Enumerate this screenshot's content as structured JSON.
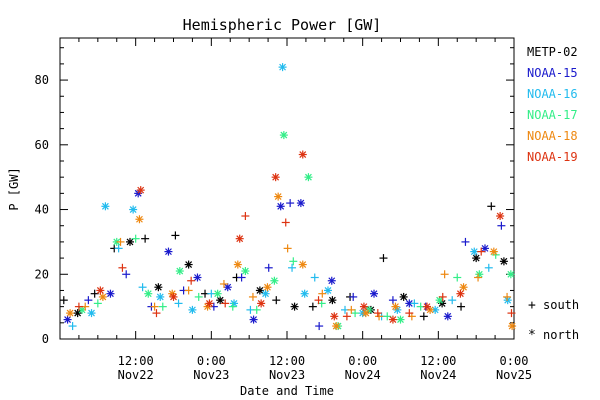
{
  "chart_data": {
    "type": "scatter",
    "title": "Hemispheric Power [GW]",
    "ylabel": "P [GW]",
    "xlabel": "Date and Time",
    "ylim": [
      0,
      93
    ],
    "xlim_hours": [
      0,
      72
    ],
    "y_ticks": [
      "0",
      "20",
      "40",
      "60",
      "80"
    ],
    "x_ticks": [
      {
        "time": "12:00",
        "date": "Nov22"
      },
      {
        "time": "0:00",
        "date": "Nov23"
      },
      {
        "time": "12:00",
        "date": "Nov23"
      },
      {
        "time": "0:00",
        "date": "Nov24"
      },
      {
        "time": "12:00",
        "date": "Nov24"
      },
      {
        "time": "0:00",
        "date": "Nov25"
      }
    ],
    "legend_position": "right",
    "series": [
      {
        "name": "METP-02",
        "color": "#000000"
      },
      {
        "name": "NOAA-15",
        "color": "#1a1acc"
      },
      {
        "name": "NOAA-16",
        "color": "#22bbee"
      },
      {
        "name": "NOAA-17",
        "color": "#33ee88"
      },
      {
        "name": "NOAA-18",
        "color": "#ee8811"
      },
      {
        "name": "NOAA-19",
        "color": "#dd3311"
      }
    ],
    "marker_legend": [
      {
        "symbol": "+",
        "label": "south"
      },
      {
        "symbol": "*",
        "label": "north"
      }
    ],
    "points": [
      [
        0,
        0.6,
        12,
        "+"
      ],
      [
        0,
        2.8,
        8,
        "*"
      ],
      [
        0,
        5.5,
        14,
        "+"
      ],
      [
        0,
        8.6,
        28,
        "+"
      ],
      [
        0,
        11.1,
        30,
        "*"
      ],
      [
        0,
        13.5,
        31,
        "+"
      ],
      [
        0,
        15.6,
        16,
        "*"
      ],
      [
        0,
        18.3,
        32,
        "+"
      ],
      [
        0,
        20.4,
        23,
        "*"
      ],
      [
        0,
        23.0,
        14,
        "+"
      ],
      [
        0,
        25.4,
        12,
        "*"
      ],
      [
        0,
        28.0,
        19,
        "+"
      ],
      [
        0,
        31.7,
        15,
        "*"
      ],
      [
        0,
        34.3,
        12,
        "+"
      ],
      [
        0,
        37.2,
        10,
        "*"
      ],
      [
        0,
        40.1,
        10,
        "+"
      ],
      [
        0,
        43.2,
        12,
        "*"
      ],
      [
        0,
        46.0,
        13,
        "+"
      ],
      [
        0,
        49.3,
        9,
        "*"
      ],
      [
        0,
        51.3,
        25,
        "+"
      ],
      [
        0,
        54.5,
        13,
        "*"
      ],
      [
        0,
        57.7,
        7,
        "+"
      ],
      [
        0,
        60.6,
        11,
        "*"
      ],
      [
        0,
        63.6,
        10,
        "+"
      ],
      [
        0,
        66.0,
        25,
        "*"
      ],
      [
        0,
        68.4,
        41,
        "+"
      ],
      [
        0,
        70.4,
        24,
        "*"
      ],
      [
        1,
        1.2,
        6,
        "*"
      ],
      [
        1,
        4.5,
        12,
        "+"
      ],
      [
        1,
        8.0,
        14,
        "*"
      ],
      [
        1,
        10.5,
        20,
        "+"
      ],
      [
        1,
        12.4,
        45,
        "*"
      ],
      [
        1,
        14.5,
        10,
        "+"
      ],
      [
        1,
        17.2,
        27,
        "*"
      ],
      [
        1,
        19.6,
        15,
        "+"
      ],
      [
        1,
        21.8,
        19,
        "*"
      ],
      [
        1,
        24.4,
        10,
        "+"
      ],
      [
        1,
        26.6,
        16,
        "*"
      ],
      [
        1,
        28.8,
        19,
        "+"
      ],
      [
        1,
        30.7,
        6,
        "*"
      ],
      [
        1,
        33.1,
        22,
        "+"
      ],
      [
        1,
        35.0,
        41,
        "*"
      ],
      [
        1,
        36.5,
        42,
        "+"
      ],
      [
        1,
        38.2,
        42,
        "*"
      ],
      [
        1,
        41.1,
        4,
        "+"
      ],
      [
        1,
        43.1,
        18,
        "*"
      ],
      [
        1,
        46.5,
        13,
        "+"
      ],
      [
        1,
        49.8,
        14,
        "*"
      ],
      [
        1,
        52.8,
        12,
        "+"
      ],
      [
        1,
        55.4,
        11,
        "*"
      ],
      [
        1,
        58.0,
        10,
        "+"
      ],
      [
        1,
        61.5,
        7,
        "*"
      ],
      [
        1,
        64.3,
        30,
        "+"
      ],
      [
        1,
        67.4,
        28,
        "*"
      ],
      [
        1,
        70.0,
        35,
        "+"
      ],
      [
        2,
        2.0,
        4,
        "+"
      ],
      [
        2,
        5.0,
        8,
        "*"
      ],
      [
        2,
        7.2,
        41,
        "*"
      ],
      [
        2,
        9.3,
        28,
        "+"
      ],
      [
        2,
        11.6,
        40,
        "*"
      ],
      [
        2,
        13.1,
        16,
        "+"
      ],
      [
        2,
        15.9,
        13,
        "*"
      ],
      [
        2,
        18.8,
        11,
        "+"
      ],
      [
        2,
        21.0,
        9,
        "*"
      ],
      [
        2,
        24.0,
        14,
        "+"
      ],
      [
        2,
        27.6,
        11,
        "*"
      ],
      [
        2,
        30.2,
        9,
        "+"
      ],
      [
        2,
        32.6,
        14,
        "*"
      ],
      [
        2,
        35.3,
        84,
        "*"
      ],
      [
        2,
        36.8,
        22,
        "+"
      ],
      [
        2,
        38.8,
        14,
        "*"
      ],
      [
        2,
        40.4,
        19,
        "+"
      ],
      [
        2,
        42.5,
        15,
        "*"
      ],
      [
        2,
        45.2,
        9,
        "+"
      ],
      [
        2,
        48.0,
        8,
        "*"
      ],
      [
        2,
        51.0,
        7,
        "+"
      ],
      [
        2,
        53.5,
        9,
        "*"
      ],
      [
        2,
        56.2,
        11,
        "+"
      ],
      [
        2,
        59.5,
        9,
        "*"
      ],
      [
        2,
        62.2,
        12,
        "+"
      ],
      [
        2,
        65.7,
        27,
        "*"
      ],
      [
        2,
        68.0,
        22,
        "+"
      ],
      [
        2,
        71.0,
        12,
        "*"
      ],
      [
        3,
        3.5,
        9,
        "*"
      ],
      [
        3,
        6.0,
        11,
        "+"
      ],
      [
        3,
        9.0,
        30,
        "*"
      ],
      [
        3,
        12.0,
        31,
        "+"
      ],
      [
        3,
        14.0,
        14,
        "*"
      ],
      [
        3,
        16.3,
        10,
        "+"
      ],
      [
        3,
        19.0,
        21,
        "*"
      ],
      [
        3,
        22.0,
        13,
        "+"
      ],
      [
        3,
        25.0,
        14,
        "*"
      ],
      [
        3,
        27.4,
        10,
        "+"
      ],
      [
        3,
        29.4,
        21,
        "*"
      ],
      [
        3,
        31.2,
        9,
        "+"
      ],
      [
        3,
        34.0,
        18,
        "*"
      ],
      [
        3,
        35.5,
        63,
        "*"
      ],
      [
        3,
        37.0,
        24,
        "+"
      ],
      [
        3,
        39.4,
        50,
        "*"
      ],
      [
        3,
        41.5,
        11,
        "+"
      ],
      [
        3,
        44.1,
        4,
        "*"
      ],
      [
        3,
        46.8,
        8,
        "+"
      ],
      [
        3,
        49.0,
        9,
        "*"
      ],
      [
        3,
        51.9,
        7,
        "+"
      ],
      [
        3,
        54.0,
        6,
        "*"
      ],
      [
        3,
        57.2,
        10,
        "+"
      ],
      [
        3,
        60.2,
        12,
        "*"
      ],
      [
        3,
        63.0,
        19,
        "+"
      ],
      [
        3,
        66.5,
        20,
        "*"
      ],
      [
        3,
        69.1,
        26,
        "+"
      ],
      [
        3,
        71.5,
        20,
        "*"
      ],
      [
        4,
        1.6,
        8,
        "*"
      ],
      [
        4,
        4.0,
        10,
        "+"
      ],
      [
        4,
        6.8,
        13,
        "*"
      ],
      [
        4,
        9.6,
        30,
        "+"
      ],
      [
        4,
        12.6,
        37,
        "*"
      ],
      [
        4,
        15.0,
        10,
        "+"
      ],
      [
        4,
        17.8,
        14,
        "*"
      ],
      [
        4,
        20.4,
        15,
        "+"
      ],
      [
        4,
        23.4,
        10,
        "*"
      ],
      [
        4,
        26.0,
        17,
        "+"
      ],
      [
        4,
        28.2,
        23,
        "*"
      ],
      [
        4,
        30.6,
        13,
        "+"
      ],
      [
        4,
        32.9,
        16,
        "*"
      ],
      [
        4,
        34.6,
        44,
        "*"
      ],
      [
        4,
        36.1,
        28,
        "+"
      ],
      [
        4,
        38.5,
        23,
        "*"
      ],
      [
        4,
        41.6,
        14,
        "+"
      ],
      [
        4,
        43.8,
        4,
        "*"
      ],
      [
        4,
        46.2,
        9,
        "+"
      ],
      [
        4,
        48.5,
        8,
        "*"
      ],
      [
        4,
        50.6,
        7,
        "+"
      ],
      [
        4,
        53.2,
        10,
        "*"
      ],
      [
        4,
        55.8,
        7,
        "+"
      ],
      [
        4,
        58.7,
        9,
        "*"
      ],
      [
        4,
        61.0,
        20,
        "+"
      ],
      [
        4,
        64.0,
        16,
        "*"
      ],
      [
        4,
        66.3,
        19,
        "+"
      ],
      [
        4,
        68.8,
        27,
        "*"
      ],
      [
        4,
        70.9,
        13,
        "+"
      ],
      [
        4,
        71.7,
        4,
        "*"
      ],
      [
        5,
        3.0,
        10,
        "+"
      ],
      [
        5,
        6.4,
        15,
        "*"
      ],
      [
        5,
        9.9,
        22,
        "+"
      ],
      [
        5,
        12.8,
        46,
        "*"
      ],
      [
        5,
        15.3,
        8,
        "+"
      ],
      [
        5,
        18.0,
        13,
        "*"
      ],
      [
        5,
        20.8,
        18,
        "+"
      ],
      [
        5,
        23.7,
        11,
        "*"
      ],
      [
        5,
        26.2,
        11,
        "+"
      ],
      [
        5,
        28.5,
        31,
        "*"
      ],
      [
        5,
        29.4,
        38,
        "+"
      ],
      [
        5,
        31.9,
        11,
        "*"
      ],
      [
        5,
        34.2,
        50,
        "*"
      ],
      [
        5,
        35.8,
        36,
        "+"
      ],
      [
        5,
        38.5,
        57,
        "*"
      ],
      [
        5,
        41.0,
        12,
        "+"
      ],
      [
        5,
        43.5,
        7,
        "*"
      ],
      [
        5,
        45.5,
        7,
        "+"
      ],
      [
        5,
        48.2,
        10,
        "*"
      ],
      [
        5,
        50.4,
        8,
        "+"
      ],
      [
        5,
        52.8,
        6,
        "*"
      ],
      [
        5,
        55.4,
        8,
        "+"
      ],
      [
        5,
        58.2,
        10,
        "*"
      ],
      [
        5,
        60.7,
        13,
        "+"
      ],
      [
        5,
        63.5,
        14,
        "*"
      ],
      [
        5,
        66.8,
        27,
        "+"
      ],
      [
        5,
        69.8,
        38,
        "*"
      ],
      [
        5,
        71.6,
        8,
        "+"
      ]
    ]
  }
}
